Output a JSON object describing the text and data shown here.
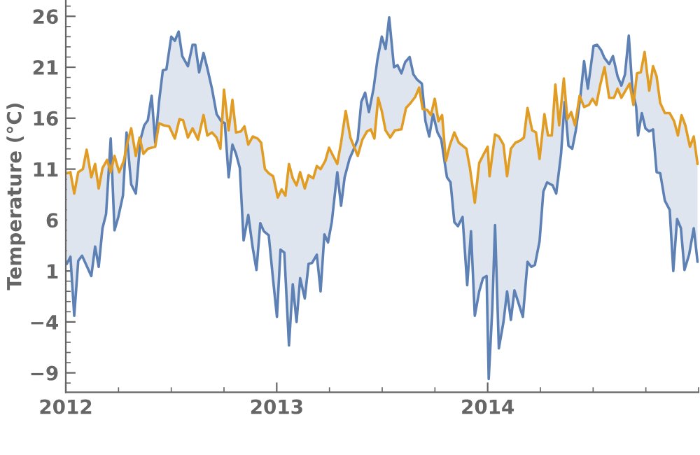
{
  "chart_data": {
    "type": "line",
    "ylabel": "Temperature (°C)",
    "xlim": [
      2012,
      2015
    ],
    "xticks": [
      2012,
      2013,
      2014
    ],
    "ylim": [
      -10.9,
      27.6
    ],
    "yticks": [
      {
        "value": -9,
        "label": "−9"
      },
      {
        "value": -4,
        "label": "−4"
      },
      1,
      6,
      11,
      16,
      21,
      26
    ],
    "grid": false,
    "series": [
      {
        "color": "#5e81b5",
        "x": [
          2012.005,
          2012.022,
          2012.04,
          2012.059,
          2012.077,
          2012.099,
          2012.121,
          2012.139,
          2012.156,
          2012.174,
          2012.191,
          2012.213,
          2012.231,
          2012.249,
          2012.271,
          2012.288,
          2012.31,
          2012.332,
          2012.354,
          2012.372,
          2012.389,
          2012.407,
          2012.424,
          2012.442,
          2012.46,
          2012.477,
          2012.5,
          2012.517,
          2012.535,
          2012.552,
          2012.579,
          2012.601,
          2012.614,
          2012.632,
          2012.653,
          2012.671,
          2012.693,
          2012.715,
          2012.737,
          2012.754,
          2012.772,
          2012.79,
          2012.807,
          2012.825,
          2012.843,
          2012.865,
          2012.886,
          2012.904,
          2012.922,
          2012.939,
          2012.962,
          2012.983,
          2013.001,
          2013.018,
          2013.036,
          2013.058,
          2013.076,
          2013.094,
          2013.111,
          2013.133,
          2013.151,
          2013.168,
          2013.19,
          2013.208,
          2013.226,
          2013.243,
          2013.261,
          2013.287,
          2013.305,
          2013.322,
          2013.345,
          2013.366,
          2013.384,
          2013.401,
          2013.419,
          2013.437,
          2013.459,
          2013.477,
          2013.498,
          2013.516,
          2013.533,
          2013.556,
          2013.573,
          2013.591,
          2013.609,
          2013.63,
          2013.648,
          2013.665,
          2013.688,
          2013.705,
          2013.723,
          2013.741,
          2013.762,
          2013.78,
          2013.807,
          2013.824,
          2013.842,
          2013.859,
          2013.881,
          2013.903,
          2013.921,
          2013.939,
          2013.96,
          2013.978,
          2013.995,
          2014.005,
          2014.022,
          2014.035,
          2014.053,
          2014.075,
          2014.092,
          2014.11,
          2014.127,
          2014.15,
          2014.167,
          2014.189,
          2014.207,
          2014.224,
          2014.246,
          2014.264,
          2014.282,
          2014.308,
          2014.325,
          2014.348,
          2014.365,
          2014.383,
          2014.401,
          2014.418,
          2014.44,
          2014.457,
          2014.475,
          2014.502,
          2014.519,
          2014.537,
          2014.554,
          2014.576,
          2014.594,
          2014.616,
          2014.634,
          2014.651,
          2014.669,
          2014.686,
          2014.704,
          2014.713,
          2014.731,
          2014.748,
          2014.766,
          2014.784,
          2014.801,
          2014.818,
          2014.84,
          2014.863,
          2014.88,
          2014.898,
          2014.916,
          2014.933,
          2014.955,
          2014.977,
          2014.995
        ],
        "values": [
          1.7,
          2.4,
          -3.4,
          2.0,
          2.5,
          1.5,
          0.5,
          3.4,
          1.4,
          5.2,
          6.6,
          14.0,
          5.0,
          6.3,
          8.4,
          14.6,
          9.5,
          8.6,
          13.9,
          15.3,
          15.8,
          18.2,
          13.6,
          17.6,
          20.7,
          20.8,
          24.0,
          23.6,
          24.5,
          22.1,
          21.1,
          23.2,
          23.2,
          20.5,
          22.4,
          20.9,
          18.9,
          16.4,
          15.7,
          15.5,
          10.2,
          13.4,
          12.5,
          11.1,
          4.0,
          6.5,
          3.3,
          1.1,
          5.7,
          4.9,
          4.5,
          0.1,
          -3.5,
          3.1,
          2.8,
          -6.3,
          -0.3,
          -4.0,
          0.3,
          -1.7,
          1.7,
          1.8,
          2.6,
          -1.0,
          4.6,
          3.8,
          5.8,
          10.7,
          7.4,
          10.2,
          12.0,
          13.0,
          13.9,
          17.6,
          18.5,
          16.6,
          18.9,
          21.7,
          24.0,
          22.8,
          25.9,
          21.0,
          21.2,
          20.4,
          21.5,
          22.0,
          20.3,
          19.8,
          19.4,
          15.7,
          14.2,
          16.4,
          14.6,
          13.9,
          10.2,
          9.7,
          5.8,
          5.4,
          6.3,
          -0.4,
          4.9,
          -3.4,
          -1.0,
          0.3,
          0.5,
          -9.6,
          -2.7,
          5.5,
          -6.6,
          -4.0,
          -1.0,
          -3.8,
          -0.9,
          -2.4,
          -3.5,
          1.9,
          1.4,
          1.6,
          3.9,
          8.8,
          9.7,
          9.4,
          8.6,
          12.5,
          17.6,
          13.3,
          13.0,
          14.8,
          18.2,
          21.6,
          18.9,
          23.1,
          23.2,
          22.7,
          21.9,
          21.3,
          22.1,
          20.1,
          19.2,
          20.3,
          24.1,
          18.9,
          17.1,
          14.3,
          16.5,
          15.0,
          14.7,
          14.9,
          10.7,
          10.6,
          7.9,
          7.0,
          1.0,
          6.1,
          5.2,
          1.1,
          2.6,
          5.2,
          1.9
        ]
      },
      {
        "color": "#e19c24",
        "x": [
          2012.005,
          2012.022,
          2012.04,
          2012.059,
          2012.081,
          2012.099,
          2012.121,
          2012.139,
          2012.156,
          2012.174,
          2012.196,
          2012.213,
          2012.231,
          2012.253,
          2012.275,
          2012.292,
          2012.31,
          2012.332,
          2012.35,
          2012.368,
          2012.389,
          2012.424,
          2012.442,
          2012.464,
          2012.49,
          2012.517,
          2012.539,
          2012.556,
          2012.579,
          2012.601,
          2012.627,
          2012.653,
          2012.671,
          2012.693,
          2012.715,
          2012.733,
          2012.75,
          2012.772,
          2012.79,
          2012.807,
          2012.83,
          2012.847,
          2012.865,
          2012.886,
          2012.909,
          2012.926,
          2012.944,
          2012.962,
          2012.983,
          2013.005,
          2013.023,
          2013.041,
          2013.058,
          2013.076,
          2013.094,
          2013.111,
          2013.133,
          2013.151,
          2013.173,
          2013.19,
          2013.208,
          2013.23,
          2013.248,
          2013.265,
          2013.287,
          2013.305,
          2013.327,
          2013.349,
          2013.384,
          2013.406,
          2013.428,
          2013.446,
          2013.463,
          2013.481,
          2013.498,
          2013.516,
          2013.538,
          2013.56,
          2013.591,
          2013.613,
          2013.635,
          2013.657,
          2013.675,
          2013.692,
          2013.714,
          2013.731,
          2013.749,
          2013.767,
          2013.784,
          2013.802,
          2013.82,
          2013.842,
          2013.863,
          2013.881,
          2013.899,
          2013.916,
          2013.939,
          2013.96,
          2013.982,
          2014.0,
          2014.009,
          2014.035,
          2014.053,
          2014.075,
          2014.092,
          2014.11,
          2014.132,
          2014.154,
          2014.172,
          2014.189,
          2014.211,
          2014.229,
          2014.246,
          2014.269,
          2014.286,
          2014.304,
          2014.321,
          2014.339,
          2014.361,
          2014.378,
          2014.396,
          2014.414,
          2014.436,
          2014.457,
          2014.48,
          2014.497,
          2014.515,
          2014.533,
          2014.554,
          2014.576,
          2014.599,
          2014.616,
          2014.634,
          2014.656,
          2014.673,
          2014.691,
          2014.708,
          2014.726,
          2014.744,
          2014.766,
          2014.784,
          2014.801,
          2014.818,
          2014.84,
          2014.863,
          2014.884,
          2014.902,
          2014.919,
          2014.937,
          2014.959,
          2014.977,
          2014.995
        ],
        "values": [
          10.6,
          10.7,
          8.6,
          10.7,
          11.0,
          12.9,
          10.2,
          11.5,
          9.1,
          11.1,
          11.9,
          10.7,
          12.3,
          10.7,
          11.8,
          13.6,
          15.0,
          12.3,
          14.1,
          12.5,
          13.0,
          13.2,
          15.5,
          15.3,
          15.2,
          14.0,
          15.9,
          15.8,
          14.1,
          15.0,
          13.9,
          16.3,
          14.3,
          14.6,
          14.1,
          13.0,
          18.8,
          14.8,
          17.8,
          14.6,
          14.7,
          15.2,
          13.4,
          14.2,
          14.0,
          13.6,
          11.0,
          10.6,
          10.3,
          8.2,
          9.0,
          8.4,
          11.5,
          10.1,
          9.4,
          10.7,
          9.1,
          10.4,
          10.1,
          11.3,
          11.0,
          11.8,
          13.1,
          12.4,
          11.5,
          13.6,
          16.7,
          14.1,
          12.3,
          13.9,
          14.7,
          14.9,
          14.0,
          18.0,
          16.7,
          14.8,
          14.1,
          14.8,
          14.9,
          17.0,
          17.5,
          18.1,
          19.0,
          16.9,
          16.8,
          16.3,
          17.9,
          15.7,
          16.3,
          11.8,
          13.3,
          14.6,
          13.6,
          13.3,
          13.0,
          11.1,
          7.7,
          11.6,
          12.5,
          13.2,
          10.3,
          14.4,
          14.2,
          13.4,
          10.3,
          13.0,
          13.6,
          13.8,
          14.1,
          17.0,
          14.8,
          14.6,
          12.0,
          16.4,
          14.3,
          14.3,
          19.3,
          15.3,
          19.9,
          15.9,
          16.6,
          15.3,
          18.2,
          17.1,
          17.3,
          17.9,
          17.3,
          19.2,
          21.0,
          18.0,
          18.0,
          18.9,
          18.0,
          18.8,
          19.4,
          17.3,
          20.4,
          20.5,
          22.5,
          18.7,
          21.1,
          20.1,
          17.5,
          16.5,
          16.5,
          15.7,
          14.3,
          16.3,
          15.3,
          13.2,
          14.2,
          11.5
        ]
      }
    ]
  }
}
